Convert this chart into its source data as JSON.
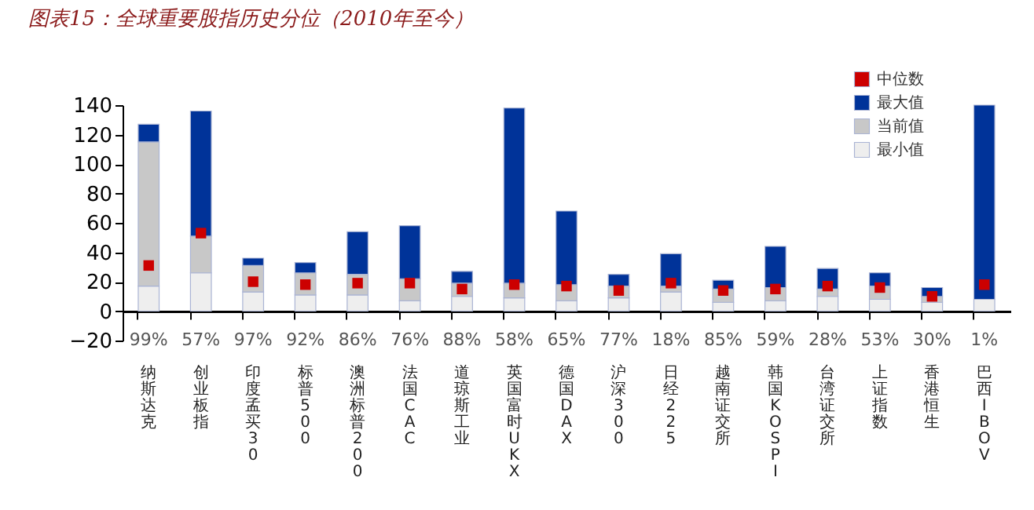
{
  "chart_data": {
    "type": "bar",
    "title": "图表15：全球重要股指历史分位（2010年至今）",
    "categories": [
      "纳斯达克",
      "创业板指",
      "印度孟买30",
      "标普500",
      "澳洲标普200",
      "法国CAC",
      "道琼斯工业",
      "英国富时UKX",
      "德国DAX",
      "沪深300",
      "日经225",
      "越南证交所",
      "韩国KOSPI",
      "台湾证交所",
      "上证指数",
      "香港恒生",
      "巴西IBOV"
    ],
    "stacked": true,
    "series": [
      {
        "name": "最小值",
        "color": "#eeeeee",
        "values": [
          17,
          26,
          13,
          11,
          11,
          7,
          10,
          9,
          7,
          9,
          13,
          6,
          7,
          10,
          8,
          6,
          8
        ]
      },
      {
        "name": "当前值",
        "color": "#c8c8c8",
        "values": [
          98,
          25,
          18,
          15,
          14,
          15,
          9,
          10,
          11,
          8,
          4,
          9,
          9,
          5,
          9,
          4,
          0
        ]
      },
      {
        "name": "最大值",
        "color": "#003399",
        "values": [
          12,
          85,
          5,
          7,
          29,
          36,
          8,
          119,
          50,
          8,
          22,
          6,
          28,
          14,
          9,
          6,
          132
        ]
      },
      {
        "name": "中位数",
        "type": "scatter",
        "marker": "square",
        "color": "#cc0000",
        "x": [
          "纳斯达克",
          "创业板指",
          "印度孟买30",
          "标普500",
          "澳洲标普200",
          "法国CAC",
          "道琼斯工业",
          "英国富时UKX",
          "德国DAX",
          "沪深300",
          "日经225",
          "越南证交所",
          "韩国KOSPI",
          "台湾证交所",
          "上证指数",
          "香港恒生",
          "巴西IBOV"
        ],
        "values": [
          31,
          53,
          20,
          18,
          19,
          19,
          15,
          18,
          17,
          14,
          19,
          14,
          15,
          17,
          16,
          10,
          18
        ]
      }
    ],
    "ylim": [
      -20,
      140
    ],
    "yticks": [
      -20,
      0,
      20,
      40,
      60,
      80,
      100,
      120,
      140
    ],
    "legend": "top right",
    "annotations": [
      "99%",
      "57%",
      "97%",
      "92%",
      "86%",
      "76%",
      "88%",
      "58%",
      "65%",
      "77%",
      "18%",
      "85%",
      "59%",
      "28%",
      "53%",
      "30%",
      "1%"
    ]
  }
}
